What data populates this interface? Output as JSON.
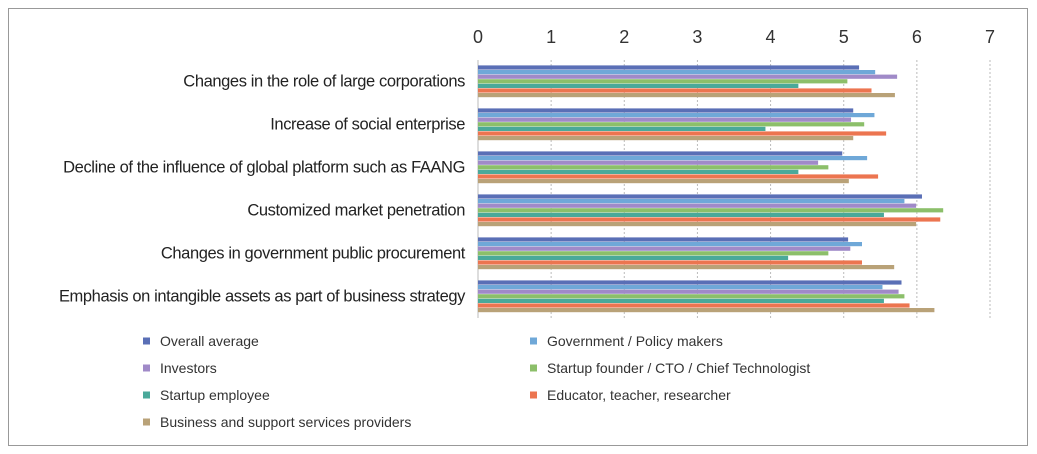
{
  "chart_data": {
    "type": "hbar",
    "categories": [
      "Changes in the role of large corporations",
      "Increase of social enterprise",
      "Decline of the influence of global platform such as FAANG",
      "Customized market penetration",
      "Changes in government public procurement",
      "Emphasis on intangible assets as part of business strategy"
    ],
    "series": [
      {
        "name": "Overall average",
        "color": "#5a6fb6",
        "values": [
          5.21,
          5.13,
          4.98,
          6.07,
          5.06,
          5.79
        ]
      },
      {
        "name": "Government / Policy makers",
        "color": "#6fa8d8",
        "values": [
          5.43,
          5.42,
          5.32,
          5.83,
          5.25,
          5.53
        ]
      },
      {
        "name": "Investors",
        "color": "#a08ac8",
        "values": [
          5.73,
          5.1,
          4.65,
          5.99,
          5.09,
          5.75
        ]
      },
      {
        "name": "Startup founder / CTO / Chief Technologist",
        "color": "#8cbf6a",
        "values": [
          5.05,
          5.28,
          4.79,
          6.36,
          4.79,
          5.83
        ]
      },
      {
        "name": "Startup employee",
        "color": "#4aa99a",
        "values": [
          4.38,
          3.93,
          4.38,
          5.55,
          4.24,
          5.55
        ]
      },
      {
        "name": "Educator, teacher, researcher",
        "color": "#ec7550",
        "values": [
          5.38,
          5.58,
          5.47,
          6.32,
          5.25,
          5.9
        ]
      },
      {
        "name": "Business and support services providers",
        "color": "#b9a278",
        "values": [
          5.7,
          5.13,
          5.07,
          5.99,
          5.69,
          6.24
        ]
      }
    ],
    "xlim": [
      0,
      7
    ],
    "xticks": [
      0,
      1,
      2,
      3,
      4,
      5,
      6,
      7
    ],
    "grid": true
  }
}
